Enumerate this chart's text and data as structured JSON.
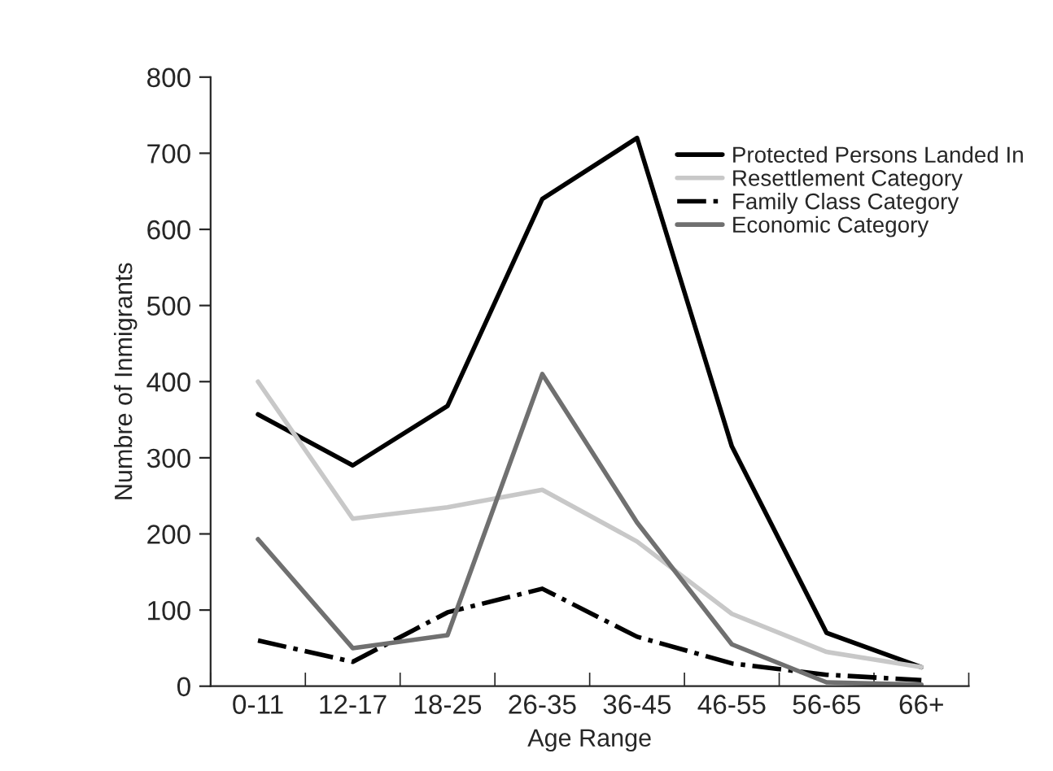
{
  "chart_data": {
    "type": "line",
    "xlabel": "Age Range",
    "ylabel": "Numbre of Inmigrants",
    "categories": [
      "0-11",
      "12-17",
      "18-25",
      "26-35",
      "36-45",
      "46-55",
      "56-65",
      "66+"
    ],
    "series": [
      {
        "name": "Protected Persons Landed In",
        "color": "#000000",
        "line_style": "solid",
        "values": [
          357,
          290,
          368,
          640,
          720,
          315,
          70,
          25
        ]
      },
      {
        "name": "Resettlement Category",
        "color": "#c8c8c8",
        "line_style": "solid",
        "values": [
          400,
          220,
          235,
          258,
          190,
          95,
          45,
          25
        ]
      },
      {
        "name": "Family Class Category",
        "color": "#000000",
        "line_style": "dashdot",
        "values": [
          60,
          32,
          97,
          128,
          65,
          30,
          15,
          8
        ]
      },
      {
        "name": "Economic Category",
        "color": "#707070",
        "line_style": "solid",
        "values": [
          193,
          50,
          67,
          410,
          215,
          55,
          5,
          2
        ]
      }
    ],
    "ylim": [
      0,
      800
    ],
    "yticks": [
      0,
      100,
      200,
      300,
      400,
      500,
      600,
      700,
      800
    ],
    "grid": false,
    "legend": "top right",
    "marker": "none"
  }
}
